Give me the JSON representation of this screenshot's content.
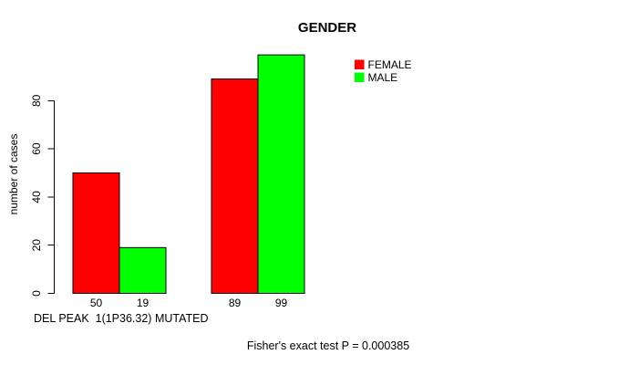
{
  "chart_data": {
    "type": "bar",
    "title": "GENDER",
    "ylabel": "number of cases",
    "xlabel": "DEL PEAK  1(1P36.32) MUTATED",
    "caption": "Fisher's exact test P = 0.000385",
    "ylim": [
      0,
      80
    ],
    "yticks": [
      0,
      20,
      40,
      60,
      80
    ],
    "grid": false,
    "legend": {
      "position": "top-right",
      "entries": [
        "FEMALE",
        "MALE"
      ]
    },
    "series": [
      {
        "name": "FEMALE",
        "color": "#ff0000",
        "values": [
          50,
          89
        ]
      },
      {
        "name": "MALE",
        "color": "#00ff00",
        "values": [
          19,
          99
        ]
      }
    ],
    "bar_labels": [
      [
        "50",
        "19"
      ],
      [
        "89",
        "99"
      ]
    ],
    "colors": {
      "female": "#ff0000",
      "male": "#00ff00",
      "axis": "#000000",
      "background": "#ffffff",
      "text": "#000000"
    }
  }
}
